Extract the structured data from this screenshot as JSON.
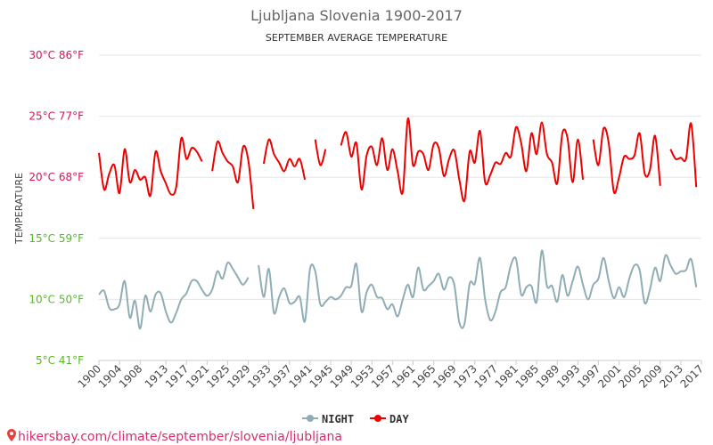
{
  "chart_data": {
    "type": "line",
    "title": "Ljubljana Slovenia 1900-2017",
    "subtitle": "SEPTEMBER AVERAGE TEMPERATURE",
    "ylabel": "TEMPERATURE",
    "ylim": [
      5,
      30
    ],
    "xlim": [
      1900,
      2017
    ],
    "y_ticks": [
      {
        "value": 30,
        "label": "30°C 86°F",
        "color": "#e0105a"
      },
      {
        "value": 25,
        "label": "25°C 77°F",
        "color": "#e0105a"
      },
      {
        "value": 20,
        "label": "20°C 68°F",
        "color": "#e0105a"
      },
      {
        "value": 15,
        "label": "15°C 59°F",
        "color": "#55bb22"
      },
      {
        "value": 10,
        "label": "10°C 50°F",
        "color": "#55bb22"
      },
      {
        "value": 5,
        "label": "5°C 41°F",
        "color": "#55bb22"
      }
    ],
    "x_ticks": [
      "1900",
      "1904",
      "1908",
      "1913",
      "1917",
      "1921",
      "1925",
      "1929",
      "1933",
      "1937",
      "1941",
      "1945",
      "1949",
      "1953",
      "1957",
      "1961",
      "1965",
      "1969",
      "1973",
      "1977",
      "1981",
      "1985",
      "1989",
      "1993",
      "1997",
      "2001",
      "2005",
      "2009",
      "2013",
      "2017"
    ],
    "grid": true,
    "legend_position": "bottom-center",
    "series": [
      {
        "name": "NIGHT",
        "color": "#90adb5",
        "points": [
          [
            1900,
            10.4
          ],
          [
            1901,
            10.7
          ],
          [
            1902,
            9.3
          ],
          [
            1903,
            9.2
          ],
          [
            1904,
            9.6
          ],
          [
            1905,
            11.5
          ],
          [
            1906,
            8.5
          ],
          [
            1907,
            9.9
          ],
          [
            1908,
            7.6
          ],
          [
            1909,
            10.3
          ],
          [
            1910,
            9.0
          ],
          [
            1911,
            10.4
          ],
          [
            1912,
            10.5
          ],
          [
            1913,
            9.0
          ],
          [
            1914,
            8.1
          ],
          [
            1915,
            8.9
          ],
          [
            1916,
            10.0
          ],
          [
            1917,
            10.5
          ],
          [
            1918,
            11.5
          ],
          [
            1919,
            11.5
          ],
          [
            1920,
            10.8
          ],
          [
            1921,
            10.3
          ],
          [
            1922,
            10.8
          ],
          [
            1923,
            12.3
          ],
          [
            1924,
            11.7
          ],
          [
            1925,
            13.0
          ],
          [
            1926,
            12.5
          ],
          [
            1927,
            11.8
          ],
          [
            1928,
            11.2
          ],
          [
            1929,
            11.8
          ],
          [
            1930,
            null
          ],
          [
            1931,
            12.8
          ],
          [
            1932,
            10.2
          ],
          [
            1933,
            12.5
          ],
          [
            1934,
            8.9
          ],
          [
            1935,
            10.2
          ],
          [
            1936,
            10.9
          ],
          [
            1937,
            9.7
          ],
          [
            1938,
            9.8
          ],
          [
            1939,
            10.2
          ],
          [
            1940,
            8.2
          ],
          [
            1941,
            12.5
          ],
          [
            1942,
            12.3
          ],
          [
            1943,
            9.6
          ],
          [
            1944,
            9.8
          ],
          [
            1945,
            10.2
          ],
          [
            1946,
            10.0
          ],
          [
            1947,
            10.3
          ],
          [
            1948,
            11.0
          ],
          [
            1949,
            11.1
          ],
          [
            1950,
            12.9
          ],
          [
            1951,
            9.0
          ],
          [
            1952,
            10.6
          ],
          [
            1953,
            11.2
          ],
          [
            1954,
            10.2
          ],
          [
            1955,
            10.1
          ],
          [
            1956,
            9.2
          ],
          [
            1957,
            9.6
          ],
          [
            1958,
            8.6
          ],
          [
            1959,
            10.0
          ],
          [
            1960,
            11.2
          ],
          [
            1961,
            10.2
          ],
          [
            1962,
            12.6
          ],
          [
            1963,
            10.8
          ],
          [
            1964,
            11.1
          ],
          [
            1965,
            11.5
          ],
          [
            1966,
            12.1
          ],
          [
            1967,
            10.8
          ],
          [
            1968,
            11.8
          ],
          [
            1969,
            11.2
          ],
          [
            1970,
            8.1
          ],
          [
            1971,
            8.0
          ],
          [
            1972,
            11.3
          ],
          [
            1973,
            11.3
          ],
          [
            1974,
            13.4
          ],
          [
            1975,
            10.0
          ],
          [
            1976,
            8.3
          ],
          [
            1977,
            9.0
          ],
          [
            1978,
            10.6
          ],
          [
            1979,
            11.0
          ],
          [
            1980,
            12.8
          ],
          [
            1981,
            13.3
          ],
          [
            1982,
            10.4
          ],
          [
            1983,
            11.0
          ],
          [
            1984,
            11.1
          ],
          [
            1985,
            9.8
          ],
          [
            1986,
            14.0
          ],
          [
            1987,
            11.1
          ],
          [
            1988,
            11.1
          ],
          [
            1989,
            9.8
          ],
          [
            1990,
            12.0
          ],
          [
            1991,
            10.3
          ],
          [
            1992,
            11.5
          ],
          [
            1993,
            12.7
          ],
          [
            1994,
            11.2
          ],
          [
            1995,
            10.0
          ],
          [
            1996,
            11.2
          ],
          [
            1997,
            11.7
          ],
          [
            1998,
            13.4
          ],
          [
            1999,
            11.5
          ],
          [
            2000,
            10.1
          ],
          [
            2001,
            11.0
          ],
          [
            2002,
            10.2
          ],
          [
            2003,
            11.7
          ],
          [
            2004,
            12.8
          ],
          [
            2005,
            12.4
          ],
          [
            2006,
            9.7
          ],
          [
            2007,
            10.8
          ],
          [
            2008,
            12.6
          ],
          [
            2009,
            11.5
          ],
          [
            2010,
            13.6
          ],
          [
            2011,
            12.8
          ],
          [
            2012,
            12.1
          ],
          [
            2013,
            12.3
          ],
          [
            2014,
            12.4
          ],
          [
            2015,
            13.3
          ],
          [
            2016,
            11.0
          ]
        ]
      },
      {
        "name": "DAY",
        "color": "#ee0000",
        "points": [
          [
            1900,
            22.0
          ],
          [
            1901,
            19.0
          ],
          [
            1902,
            20.3
          ],
          [
            1903,
            21.0
          ],
          [
            1904,
            18.7
          ],
          [
            1905,
            22.3
          ],
          [
            1906,
            19.6
          ],
          [
            1907,
            20.6
          ],
          [
            1908,
            19.8
          ],
          [
            1909,
            20.0
          ],
          [
            1910,
            18.5
          ],
          [
            1911,
            22.1
          ],
          [
            1912,
            20.5
          ],
          [
            1913,
            19.5
          ],
          [
            1914,
            18.6
          ],
          [
            1915,
            19.2
          ],
          [
            1916,
            23.2
          ],
          [
            1917,
            21.5
          ],
          [
            1918,
            22.4
          ],
          [
            1919,
            22.1
          ],
          [
            1920,
            21.3
          ],
          [
            1921,
            null
          ],
          [
            1922,
            20.5
          ],
          [
            1923,
            22.9
          ],
          [
            1924,
            22.0
          ],
          [
            1925,
            21.3
          ],
          [
            1926,
            20.9
          ],
          [
            1927,
            19.6
          ],
          [
            1928,
            22.5
          ],
          [
            1929,
            21.4
          ],
          [
            1930,
            17.4
          ],
          [
            1931,
            null
          ],
          [
            1932,
            21.1
          ],
          [
            1933,
            23.1
          ],
          [
            1934,
            21.9
          ],
          [
            1935,
            21.2
          ],
          [
            1936,
            20.5
          ],
          [
            1937,
            21.5
          ],
          [
            1938,
            20.9
          ],
          [
            1939,
            21.5
          ],
          [
            1940,
            19.8
          ],
          [
            1941,
            null
          ],
          [
            1942,
            23.1
          ],
          [
            1943,
            21.0
          ],
          [
            1944,
            22.3
          ],
          [
            1945,
            null
          ],
          [
            1946,
            null
          ],
          [
            1947,
            22.6
          ],
          [
            1948,
            23.7
          ],
          [
            1949,
            21.7
          ],
          [
            1950,
            22.8
          ],
          [
            1951,
            19.0
          ],
          [
            1952,
            21.8
          ],
          [
            1953,
            22.5
          ],
          [
            1954,
            21.0
          ],
          [
            1955,
            23.2
          ],
          [
            1956,
            20.6
          ],
          [
            1957,
            22.3
          ],
          [
            1958,
            20.5
          ],
          [
            1959,
            18.8
          ],
          [
            1960,
            24.8
          ],
          [
            1961,
            21.0
          ],
          [
            1962,
            22.1
          ],
          [
            1963,
            21.9
          ],
          [
            1964,
            20.6
          ],
          [
            1965,
            22.7
          ],
          [
            1966,
            22.4
          ],
          [
            1967,
            20.1
          ],
          [
            1968,
            21.5
          ],
          [
            1969,
            22.2
          ],
          [
            1970,
            19.8
          ],
          [
            1971,
            18.1
          ],
          [
            1972,
            22.1
          ],
          [
            1973,
            21.2
          ],
          [
            1974,
            23.8
          ],
          [
            1975,
            19.6
          ],
          [
            1976,
            20.2
          ],
          [
            1977,
            21.2
          ],
          [
            1978,
            21.1
          ],
          [
            1979,
            22.0
          ],
          [
            1980,
            21.7
          ],
          [
            1981,
            24.1
          ],
          [
            1982,
            22.8
          ],
          [
            1983,
            20.5
          ],
          [
            1984,
            23.6
          ],
          [
            1985,
            21.9
          ],
          [
            1986,
            24.5
          ],
          [
            1987,
            21.9
          ],
          [
            1988,
            21.2
          ],
          [
            1989,
            19.5
          ],
          [
            1990,
            23.6
          ],
          [
            1991,
            23.2
          ],
          [
            1992,
            19.6
          ],
          [
            1993,
            23.1
          ],
          [
            1994,
            19.8
          ],
          [
            1995,
            null
          ],
          [
            1996,
            23.1
          ],
          [
            1997,
            21.0
          ],
          [
            1998,
            24.0
          ],
          [
            1999,
            22.8
          ],
          [
            2000,
            18.8
          ],
          [
            2001,
            20.0
          ],
          [
            2002,
            21.7
          ],
          [
            2003,
            21.5
          ],
          [
            2004,
            21.8
          ],
          [
            2005,
            23.6
          ],
          [
            2006,
            20.3
          ],
          [
            2007,
            20.6
          ],
          [
            2008,
            23.4
          ],
          [
            2009,
            19.3
          ],
          [
            2010,
            null
          ],
          [
            2011,
            22.3
          ],
          [
            2012,
            21.5
          ],
          [
            2013,
            21.6
          ],
          [
            2014,
            21.5
          ],
          [
            2015,
            24.4
          ],
          [
            2016,
            19.2
          ]
        ]
      }
    ]
  },
  "watermark_text": "hikersbay.com/climate/september/slovenia/ljubljana"
}
